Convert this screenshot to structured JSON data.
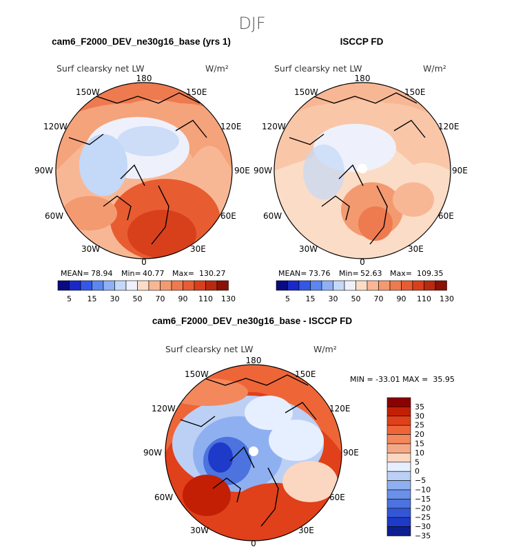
{
  "season": "DJF",
  "panels": [
    {
      "title": "cam6_F2000_DEV_ne30g16_base (yrs 1)",
      "variable": "Surf clearsky net LW",
      "units": "W/m²",
      "stats": {
        "mean_label": "MEAN=",
        "mean": "78.94",
        "min_label": "Min=",
        "min": "40.77",
        "max_label": "Max=",
        "max": "130.27"
      },
      "colorbar_ticks": [
        "5",
        "15",
        "30",
        "50",
        "70",
        "90",
        "110",
        "130"
      ]
    },
    {
      "title": "ISCCP FD",
      "variable": "Surf clearsky net LW",
      "units": "W/m²",
      "stats": {
        "mean_label": "MEAN=",
        "mean": "73.76",
        "min_label": "Min=",
        "min": "52.63",
        "max_label": "Max=",
        "max": "109.35"
      },
      "colorbar_ticks": [
        "5",
        "15",
        "30",
        "50",
        "70",
        "90",
        "110",
        "130"
      ]
    },
    {
      "title": "cam6_F2000_DEV_ne30g16_base - ISCCP FD",
      "variable": "Surf clearsky net LW",
      "units": "W/m²",
      "stats_line": "MIN = -33.01 MAX =  35.95",
      "colorbar_ticks": [
        "35",
        "30",
        "25",
        "20",
        "15",
        "10",
        "5",
        "0",
        "−5",
        "−10",
        "−15",
        "−20",
        "−25",
        "−30",
        "−35"
      ]
    }
  ],
  "lon_labels": {
    "top": "180",
    "bottom": "0",
    "left": "90W",
    "right": "90E",
    "ul1": "150W",
    "ul2": "120W",
    "ur1": "150E",
    "ur2": "120E",
    "ll1": "60W",
    "ll2": "30W",
    "lr1": "60E",
    "lr2": "30E"
  },
  "colors": {
    "abs_scale": [
      "#0a0a80",
      "#1a28c8",
      "#3358e6",
      "#5c86f0",
      "#8fb0f4",
      "#c4d8f8",
      "#eef1fb",
      "#fbdcc6",
      "#f8b794",
      "#f49a70",
      "#ee7a50",
      "#e85c32",
      "#d8401c",
      "#b82a10",
      "#8a1206"
    ],
    "diff_scale": [
      "#8b0000",
      "#c21f05",
      "#e0401a",
      "#ee6638",
      "#f3885c",
      "#f5a886",
      "#fbd6c0",
      "#e6efff",
      "#bcd0f5",
      "#8fb0f0",
      "#6a90e8",
      "#4c73de",
      "#3256d6",
      "#1e3ac8",
      "#0c1e90"
    ]
  },
  "chart_data": [
    {
      "type": "heatmap",
      "projection": "north-polar-stereographic",
      "title": "cam6_F2000_DEV_ne30g16_base (yrs 1)",
      "variable": "Surf clearsky net LW",
      "units": "W/m²",
      "mean": 78.94,
      "min": 40.77,
      "max": 130.27,
      "levels": [
        5,
        15,
        30,
        50,
        70,
        90,
        110,
        130
      ]
    },
    {
      "type": "heatmap",
      "projection": "north-polar-stereographic",
      "title": "ISCCP FD",
      "variable": "Surf clearsky net LW",
      "units": "W/m²",
      "mean": 73.76,
      "min": 52.63,
      "max": 109.35,
      "levels": [
        5,
        15,
        30,
        50,
        70,
        90,
        110,
        130
      ]
    },
    {
      "type": "heatmap",
      "projection": "north-polar-stereographic",
      "title": "cam6_F2000_DEV_ne30g16_base - ISCCP FD",
      "variable": "Surf clearsky net LW",
      "units": "W/m²",
      "min": -33.01,
      "max": 35.95,
      "levels": [
        35,
        30,
        25,
        20,
        15,
        10,
        5,
        0,
        -5,
        -10,
        -15,
        -20,
        -25,
        -30,
        -35
      ]
    }
  ]
}
